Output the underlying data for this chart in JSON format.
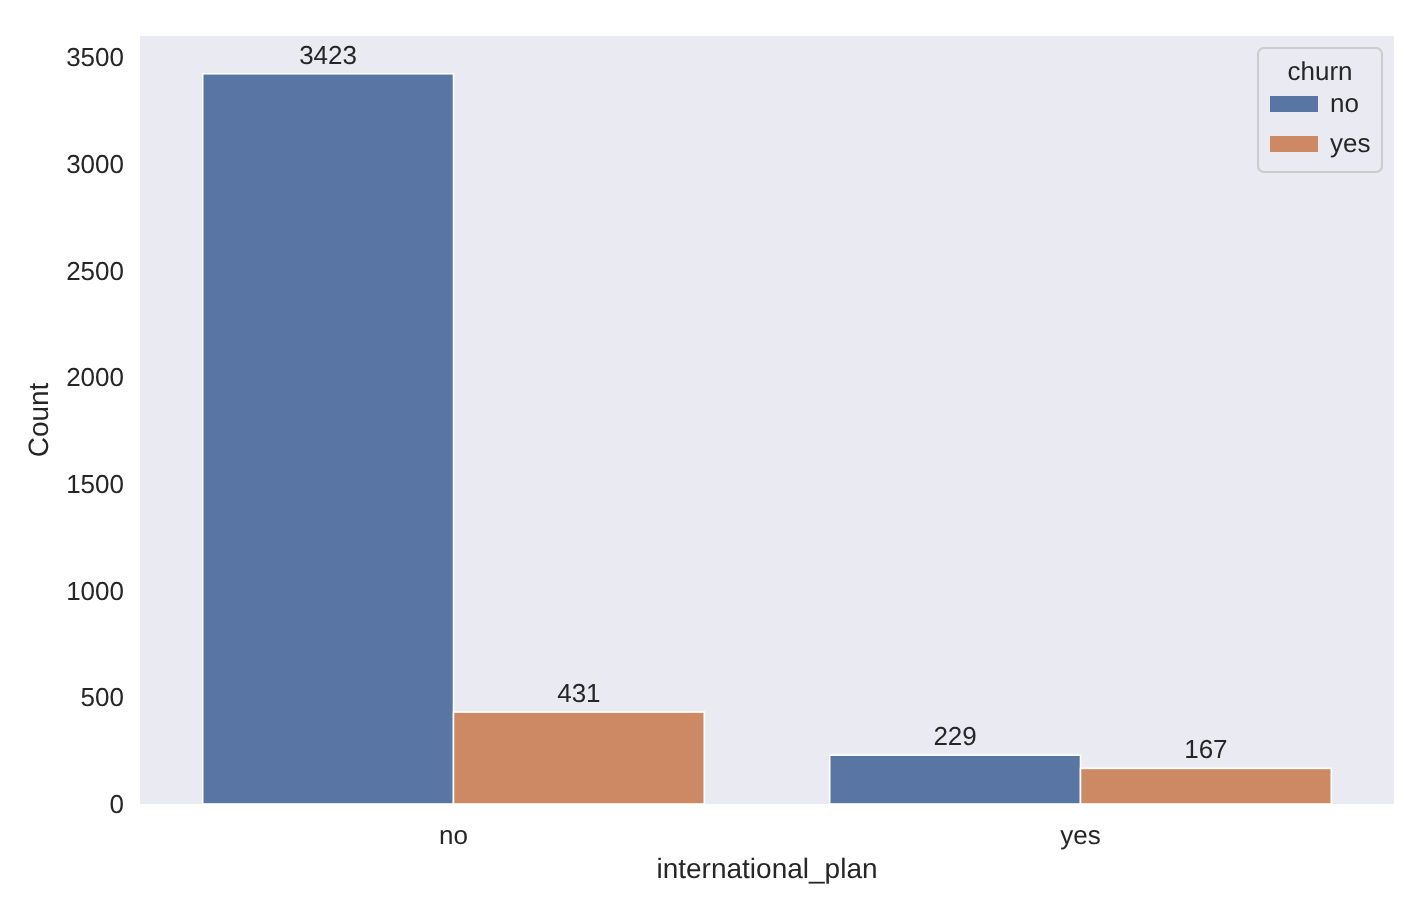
{
  "chart_data": {
    "type": "bar",
    "xlabel": "international_plan",
    "ylabel": "Count",
    "categories": [
      "no",
      "yes"
    ],
    "series": [
      {
        "name": "no",
        "color": "#5975a4",
        "values": [
          3423,
          229
        ]
      },
      {
        "name": "yes",
        "color": "#cc8963",
        "values": [
          431,
          167
        ]
      }
    ],
    "legend_title": "churn",
    "legend": "top right",
    "data_labels": true,
    "grid": false,
    "ylim": [
      0,
      3600
    ],
    "yticks": [
      0,
      500,
      1000,
      1500,
      2000,
      2500,
      3000,
      3500
    ]
  }
}
